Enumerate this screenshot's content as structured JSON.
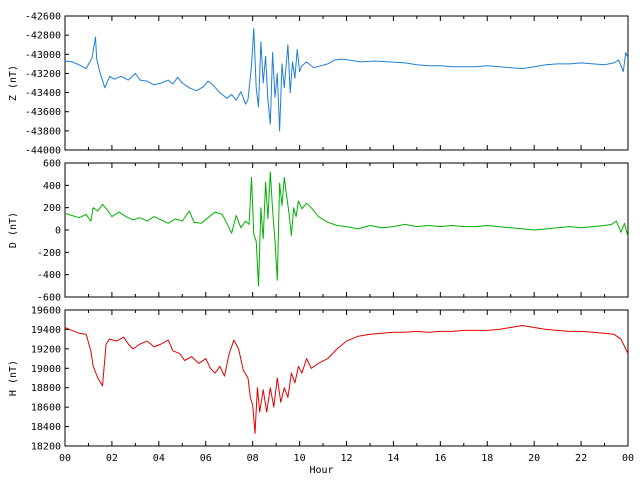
{
  "chart_data": {
    "type": "line",
    "xlabel": "Hour",
    "x_tick_labels": [
      "00",
      "02",
      "04",
      "06",
      "08",
      "10",
      "12",
      "14",
      "16",
      "18",
      "20",
      "22",
      "00"
    ],
    "xlim": [
      0,
      24
    ],
    "panels": [
      {
        "name": "Z",
        "ylabel": "Z (nT)",
        "color": "#1f7fd6",
        "ylim": [
          -44000,
          -42600
        ],
        "y_ticks": [
          -42600,
          -42800,
          -43000,
          -43200,
          -43400,
          -43600,
          -43800,
          -44000
        ],
        "series": [
          [
            0,
            -43070
          ],
          [
            0.3,
            -43080
          ],
          [
            0.6,
            -43110
          ],
          [
            0.9,
            -43150
          ],
          [
            1.15,
            -43040
          ],
          [
            1.3,
            -42820
          ],
          [
            1.35,
            -43050
          ],
          [
            1.5,
            -43200
          ],
          [
            1.7,
            -43350
          ],
          [
            1.9,
            -43230
          ],
          [
            2.1,
            -43260
          ],
          [
            2.4,
            -43230
          ],
          [
            2.7,
            -43270
          ],
          [
            3.0,
            -43200
          ],
          [
            3.2,
            -43270
          ],
          [
            3.5,
            -43280
          ],
          [
            3.8,
            -43320
          ],
          [
            4.1,
            -43300
          ],
          [
            4.4,
            -43270
          ],
          [
            4.6,
            -43310
          ],
          [
            4.8,
            -43240
          ],
          [
            5.0,
            -43300
          ],
          [
            5.3,
            -43350
          ],
          [
            5.6,
            -43380
          ],
          [
            5.9,
            -43340
          ],
          [
            6.1,
            -43280
          ],
          [
            6.3,
            -43320
          ],
          [
            6.6,
            -43400
          ],
          [
            6.9,
            -43460
          ],
          [
            7.1,
            -43420
          ],
          [
            7.3,
            -43480
          ],
          [
            7.5,
            -43390
          ],
          [
            7.7,
            -43520
          ],
          [
            7.8,
            -43470
          ],
          [
            7.95,
            -43120
          ],
          [
            8.05,
            -42730
          ],
          [
            8.15,
            -43350
          ],
          [
            8.25,
            -43550
          ],
          [
            8.35,
            -42870
          ],
          [
            8.45,
            -43300
          ],
          [
            8.55,
            -43020
          ],
          [
            8.65,
            -43480
          ],
          [
            8.75,
            -43730
          ],
          [
            8.85,
            -42980
          ],
          [
            8.95,
            -43450
          ],
          [
            9.05,
            -43200
          ],
          [
            9.15,
            -43800
          ],
          [
            9.25,
            -43100
          ],
          [
            9.35,
            -43350
          ],
          [
            9.5,
            -42900
          ],
          [
            9.6,
            -43400
          ],
          [
            9.7,
            -43080
          ],
          [
            9.8,
            -43250
          ],
          [
            9.9,
            -42950
          ],
          [
            10.0,
            -43180
          ],
          [
            10.1,
            -43120
          ],
          [
            10.3,
            -43080
          ],
          [
            10.6,
            -43140
          ],
          [
            10.9,
            -43120
          ],
          [
            11.2,
            -43100
          ],
          [
            11.5,
            -43060
          ],
          [
            11.8,
            -43050
          ],
          [
            12.1,
            -43060
          ],
          [
            12.6,
            -43080
          ],
          [
            13.2,
            -43070
          ],
          [
            13.8,
            -43080
          ],
          [
            14.5,
            -43090
          ],
          [
            15.0,
            -43110
          ],
          [
            15.5,
            -43120
          ],
          [
            16.0,
            -43120
          ],
          [
            16.5,
            -43130
          ],
          [
            17.0,
            -43130
          ],
          [
            17.5,
            -43130
          ],
          [
            18.0,
            -43120
          ],
          [
            18.5,
            -43130
          ],
          [
            19.0,
            -43140
          ],
          [
            19.5,
            -43150
          ],
          [
            20.0,
            -43130
          ],
          [
            20.5,
            -43110
          ],
          [
            21.0,
            -43100
          ],
          [
            21.5,
            -43100
          ],
          [
            22.0,
            -43090
          ],
          [
            22.5,
            -43100
          ],
          [
            23.0,
            -43110
          ],
          [
            23.4,
            -43090
          ],
          [
            23.6,
            -43060
          ],
          [
            23.8,
            -43180
          ],
          [
            23.9,
            -42980
          ],
          [
            24.0,
            -43040
          ]
        ]
      },
      {
        "name": "D",
        "ylabel": "D (nT)",
        "color": "#00b000",
        "ylim": [
          -600,
          600
        ],
        "y_ticks": [
          600,
          400,
          200,
          0,
          -200,
          -400,
          -600
        ],
        "series": [
          [
            0,
            150
          ],
          [
            0.3,
            130
          ],
          [
            0.6,
            110
          ],
          [
            0.9,
            140
          ],
          [
            1.1,
            80
          ],
          [
            1.2,
            200
          ],
          [
            1.4,
            170
          ],
          [
            1.6,
            230
          ],
          [
            1.8,
            180
          ],
          [
            2.0,
            120
          ],
          [
            2.3,
            160
          ],
          [
            2.6,
            120
          ],
          [
            2.9,
            90
          ],
          [
            3.2,
            110
          ],
          [
            3.5,
            80
          ],
          [
            3.8,
            120
          ],
          [
            4.1,
            90
          ],
          [
            4.4,
            60
          ],
          [
            4.7,
            100
          ],
          [
            5.0,
            80
          ],
          [
            5.3,
            170
          ],
          [
            5.5,
            70
          ],
          [
            5.8,
            60
          ],
          [
            6.1,
            110
          ],
          [
            6.4,
            160
          ],
          [
            6.7,
            140
          ],
          [
            6.9,
            60
          ],
          [
            7.1,
            -30
          ],
          [
            7.3,
            130
          ],
          [
            7.5,
            20
          ],
          [
            7.7,
            80
          ],
          [
            7.85,
            50
          ],
          [
            7.95,
            470
          ],
          [
            8.05,
            -40
          ],
          [
            8.15,
            -100
          ],
          [
            8.25,
            -500
          ],
          [
            8.35,
            200
          ],
          [
            8.45,
            -80
          ],
          [
            8.55,
            430
          ],
          [
            8.65,
            100
          ],
          [
            8.75,
            520
          ],
          [
            8.85,
            180
          ],
          [
            8.95,
            -100
          ],
          [
            9.05,
            -450
          ],
          [
            9.15,
            420
          ],
          [
            9.25,
            220
          ],
          [
            9.35,
            470
          ],
          [
            9.45,
            300
          ],
          [
            9.55,
            150
          ],
          [
            9.65,
            -50
          ],
          [
            9.75,
            200
          ],
          [
            9.85,
            120
          ],
          [
            9.95,
            260
          ],
          [
            10.1,
            190
          ],
          [
            10.3,
            240
          ],
          [
            10.5,
            200
          ],
          [
            10.8,
            120
          ],
          [
            11.2,
            70
          ],
          [
            11.6,
            40
          ],
          [
            12.0,
            30
          ],
          [
            12.5,
            10
          ],
          [
            13.0,
            40
          ],
          [
            13.5,
            20
          ],
          [
            14.0,
            30
          ],
          [
            14.5,
            50
          ],
          [
            15.0,
            30
          ],
          [
            15.5,
            40
          ],
          [
            16.0,
            30
          ],
          [
            16.5,
            40
          ],
          [
            17.0,
            30
          ],
          [
            17.5,
            30
          ],
          [
            18.0,
            40
          ],
          [
            18.5,
            30
          ],
          [
            19.0,
            20
          ],
          [
            19.5,
            10
          ],
          [
            20.0,
            0
          ],
          [
            20.5,
            10
          ],
          [
            21.0,
            20
          ],
          [
            21.5,
            30
          ],
          [
            22.0,
            20
          ],
          [
            22.5,
            30
          ],
          [
            23.0,
            40
          ],
          [
            23.3,
            50
          ],
          [
            23.5,
            80
          ],
          [
            23.7,
            -20
          ],
          [
            23.85,
            60
          ],
          [
            24.0,
            -60
          ]
        ]
      },
      {
        "name": "H",
        "ylabel": "H (nT)",
        "color": "#e00000",
        "ylim": [
          18200,
          19600
        ],
        "y_ticks": [
          19600,
          19400,
          19200,
          19000,
          18800,
          18600,
          18400,
          18200
        ],
        "series": [
          [
            0,
            19420
          ],
          [
            0.3,
            19390
          ],
          [
            0.6,
            19360
          ],
          [
            0.9,
            19350
          ],
          [
            1.1,
            19180
          ],
          [
            1.2,
            19020
          ],
          [
            1.4,
            18900
          ],
          [
            1.6,
            18820
          ],
          [
            1.75,
            19250
          ],
          [
            1.9,
            19300
          ],
          [
            2.2,
            19280
          ],
          [
            2.5,
            19320
          ],
          [
            2.7,
            19250
          ],
          [
            2.9,
            19200
          ],
          [
            3.2,
            19250
          ],
          [
            3.5,
            19280
          ],
          [
            3.8,
            19220
          ],
          [
            4.1,
            19250
          ],
          [
            4.4,
            19290
          ],
          [
            4.6,
            19180
          ],
          [
            4.9,
            19150
          ],
          [
            5.1,
            19080
          ],
          [
            5.4,
            19120
          ],
          [
            5.7,
            19050
          ],
          [
            6.0,
            19100
          ],
          [
            6.2,
            19000
          ],
          [
            6.4,
            18950
          ],
          [
            6.6,
            19020
          ],
          [
            6.8,
            18920
          ],
          [
            7.0,
            19150
          ],
          [
            7.2,
            19290
          ],
          [
            7.4,
            19200
          ],
          [
            7.6,
            18980
          ],
          [
            7.8,
            18900
          ],
          [
            7.9,
            18700
          ],
          [
            8.0,
            18620
          ],
          [
            8.1,
            18330
          ],
          [
            8.2,
            18800
          ],
          [
            8.3,
            18550
          ],
          [
            8.45,
            18780
          ],
          [
            8.6,
            18550
          ],
          [
            8.75,
            18800
          ],
          [
            8.9,
            18600
          ],
          [
            9.05,
            18900
          ],
          [
            9.2,
            18650
          ],
          [
            9.35,
            18800
          ],
          [
            9.5,
            18700
          ],
          [
            9.65,
            18950
          ],
          [
            9.8,
            18850
          ],
          [
            9.95,
            19020
          ],
          [
            10.1,
            18950
          ],
          [
            10.3,
            19100
          ],
          [
            10.5,
            19000
          ],
          [
            10.8,
            19050
          ],
          [
            11.2,
            19100
          ],
          [
            11.6,
            19200
          ],
          [
            12.0,
            19280
          ],
          [
            12.5,
            19330
          ],
          [
            13.0,
            19350
          ],
          [
            13.5,
            19360
          ],
          [
            14.0,
            19370
          ],
          [
            14.5,
            19370
          ],
          [
            15.0,
            19380
          ],
          [
            15.5,
            19370
          ],
          [
            16.0,
            19380
          ],
          [
            16.5,
            19380
          ],
          [
            17.0,
            19390
          ],
          [
            17.5,
            19390
          ],
          [
            18.0,
            19390
          ],
          [
            18.5,
            19400
          ],
          [
            19.0,
            19420
          ],
          [
            19.5,
            19440
          ],
          [
            20.0,
            19420
          ],
          [
            20.5,
            19400
          ],
          [
            21.0,
            19390
          ],
          [
            21.5,
            19380
          ],
          [
            22.0,
            19380
          ],
          [
            22.5,
            19370
          ],
          [
            23.0,
            19360
          ],
          [
            23.4,
            19350
          ],
          [
            23.7,
            19300
          ],
          [
            23.9,
            19200
          ],
          [
            24.0,
            19150
          ]
        ]
      }
    ]
  }
}
